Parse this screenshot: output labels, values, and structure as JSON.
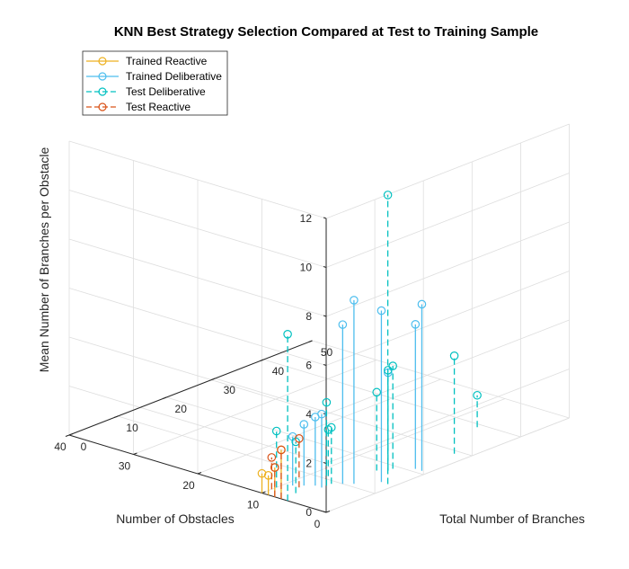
{
  "chart_data": {
    "type": "scatter",
    "title": "KNN Best Strategy Selection Compared at Test to Training Sample",
    "xlabel": "Number of Obstacles",
    "ylabel": "Total Number of Branches",
    "zlabel": "Mean Number of Branches per Obstacle",
    "xlim": [
      0,
      40
    ],
    "ylim": [
      0,
      50
    ],
    "zlim": [
      0,
      12
    ],
    "x_ticks": [
      "0",
      "10",
      "20",
      "30",
      "40"
    ],
    "y_ticks": [
      "0",
      "10",
      "20",
      "30",
      "40",
      "50"
    ],
    "z_ticks": [
      "0",
      "2",
      "4",
      "6",
      "8",
      "10",
      "12"
    ],
    "grid": true,
    "legend_position": "top-left",
    "series": [
      {
        "name": "Trained Reactive",
        "color": "#EDB120",
        "line": "solid",
        "points": [
          {
            "x": 7,
            "y": 0,
            "z": 2.0
          },
          {
            "x": 8,
            "y": 0,
            "z": 1.2
          },
          {
            "x": 9,
            "y": 0,
            "z": 0.8
          },
          {
            "x": 10,
            "y": 0,
            "z": 0.8
          }
        ]
      },
      {
        "name": "Trained Deliberative",
        "color": "#4DBEEE",
        "line": "solid",
        "points": [
          {
            "x": 9,
            "y": 5,
            "z": 2.0
          },
          {
            "x": 8,
            "y": 6,
            "z": 2.5
          },
          {
            "x": 7,
            "y": 7,
            "z": 2.8
          },
          {
            "x": 6,
            "y": 7,
            "z": 3.0
          },
          {
            "x": 5,
            "y": 10,
            "z": 6.5
          },
          {
            "x": 4,
            "y": 11,
            "z": 7.5
          },
          {
            "x": 2,
            "y": 14,
            "z": 7.0
          },
          {
            "x": 2,
            "y": 21,
            "z": 5.9
          },
          {
            "x": 1,
            "y": 21,
            "z": 6.8
          },
          {
            "x": 4,
            "y": 18,
            "z": 4.0
          }
        ]
      },
      {
        "name": "Test Deliberative",
        "color": "#00C0C0",
        "line": "dashed",
        "points": [
          {
            "x": 6,
            "y": 0,
            "z": 6.8
          },
          {
            "x": 7,
            "y": 3,
            "z": 2.1
          },
          {
            "x": 10,
            "y": 3,
            "z": 2.3
          },
          {
            "x": 6,
            "y": 8,
            "z": 3.4
          },
          {
            "x": 6,
            "y": 9,
            "z": 2.3
          },
          {
            "x": 8,
            "y": 11,
            "z": 1.9
          },
          {
            "x": 1,
            "y": 14,
            "z": 11.8
          },
          {
            "x": 5,
            "y": 17,
            "z": 3.2
          },
          {
            "x": 4,
            "y": 18,
            "z": 4.1
          },
          {
            "x": 4,
            "y": 19,
            "z": 4.2
          },
          {
            "x": 2,
            "y": 29,
            "z": 4.0
          },
          {
            "x": 6,
            "y": 39,
            "z": 1.3
          }
        ]
      },
      {
        "name": "Test Reactive",
        "color": "#D95319",
        "line": "dashed",
        "points": [
          {
            "x": 7,
            "y": 0,
            "z": 2.0
          },
          {
            "x": 8,
            "y": 0,
            "z": 1.2
          },
          {
            "x": 10,
            "y": 2,
            "z": 1.3
          },
          {
            "x": 8,
            "y": 5,
            "z": 2.0
          }
        ]
      }
    ]
  }
}
